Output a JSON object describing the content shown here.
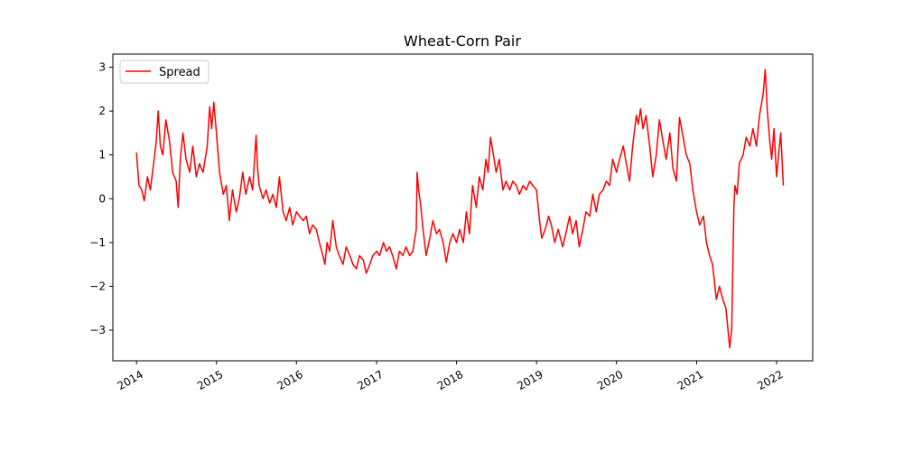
{
  "chart_data": {
    "type": "line",
    "title": "Wheat-Corn Pair",
    "xlabel": "",
    "ylabel": "",
    "x_type": "date",
    "xlim": [
      "2013-09-15",
      "2022-06-15"
    ],
    "ylim": [
      -3.7,
      3.3
    ],
    "x_ticks": [
      {
        "date": "2014-01-01",
        "label": "2014"
      },
      {
        "date": "2015-01-01",
        "label": "2015"
      },
      {
        "date": "2016-01-01",
        "label": "2016"
      },
      {
        "date": "2017-01-01",
        "label": "2017"
      },
      {
        "date": "2018-01-01",
        "label": "2018"
      },
      {
        "date": "2019-01-01",
        "label": "2019"
      },
      {
        "date": "2020-01-01",
        "label": "2020"
      },
      {
        "date": "2021-01-01",
        "label": "2021"
      },
      {
        "date": "2022-01-01",
        "label": "2022"
      }
    ],
    "y_ticks": [
      {
        "value": 3,
        "label": "3"
      },
      {
        "value": 2,
        "label": "2"
      },
      {
        "value": 1,
        "label": "1"
      },
      {
        "value": 0,
        "label": "0"
      },
      {
        "value": -1,
        "label": "−1"
      },
      {
        "value": -2,
        "label": "−2"
      },
      {
        "value": -3,
        "label": "−3"
      }
    ],
    "grid": false,
    "legend_position": "upper-left",
    "series": [
      {
        "name": "Spread",
        "color": "#ff0000",
        "points": [
          [
            "2014-01-01",
            1.05
          ],
          [
            "2014-01-12",
            0.3
          ],
          [
            "2014-01-25",
            0.2
          ],
          [
            "2014-02-05",
            -0.05
          ],
          [
            "2014-02-20",
            0.5
          ],
          [
            "2014-03-05",
            0.2
          ],
          [
            "2014-03-20",
            0.8
          ],
          [
            "2014-04-01",
            1.3
          ],
          [
            "2014-04-10",
            2.0
          ],
          [
            "2014-04-20",
            1.2
          ],
          [
            "2014-05-01",
            1.0
          ],
          [
            "2014-05-15",
            1.8
          ],
          [
            "2014-06-01",
            1.3
          ],
          [
            "2014-06-15",
            0.6
          ],
          [
            "2014-07-01",
            0.4
          ],
          [
            "2014-07-10",
            -0.2
          ],
          [
            "2014-07-20",
            0.9
          ],
          [
            "2014-08-01",
            1.5
          ],
          [
            "2014-08-15",
            0.9
          ],
          [
            "2014-09-01",
            0.6
          ],
          [
            "2014-09-15",
            1.2
          ],
          [
            "2014-10-01",
            0.5
          ],
          [
            "2014-10-15",
            0.8
          ],
          [
            "2014-11-01",
            0.6
          ],
          [
            "2014-11-20",
            1.2
          ],
          [
            "2014-12-01",
            2.1
          ],
          [
            "2014-12-10",
            1.6
          ],
          [
            "2014-12-20",
            2.2
          ],
          [
            "2015-01-01",
            1.5
          ],
          [
            "2015-01-15",
            0.6
          ],
          [
            "2015-02-01",
            0.1
          ],
          [
            "2015-02-15",
            0.3
          ],
          [
            "2015-03-01",
            -0.5
          ],
          [
            "2015-03-15",
            0.2
          ],
          [
            "2015-04-01",
            -0.3
          ],
          [
            "2015-04-15",
            0.0
          ],
          [
            "2015-05-01",
            0.6
          ],
          [
            "2015-05-15",
            0.1
          ],
          [
            "2015-06-01",
            0.5
          ],
          [
            "2015-06-15",
            0.2
          ],
          [
            "2015-07-01",
            1.45
          ],
          [
            "2015-07-08",
            0.7
          ],
          [
            "2015-07-15",
            0.3
          ],
          [
            "2015-08-01",
            0.0
          ],
          [
            "2015-08-15",
            0.2
          ],
          [
            "2015-09-01",
            -0.1
          ],
          [
            "2015-09-15",
            0.1
          ],
          [
            "2015-10-01",
            -0.2
          ],
          [
            "2015-10-15",
            0.5
          ],
          [
            "2015-11-01",
            -0.3
          ],
          [
            "2015-11-15",
            -0.5
          ],
          [
            "2015-12-01",
            -0.2
          ],
          [
            "2015-12-15",
            -0.6
          ],
          [
            "2016-01-01",
            -0.3
          ],
          [
            "2016-01-15",
            -0.4
          ],
          [
            "2016-02-01",
            -0.5
          ],
          [
            "2016-02-15",
            -0.4
          ],
          [
            "2016-03-01",
            -0.8
          ],
          [
            "2016-03-15",
            -0.6
          ],
          [
            "2016-04-01",
            -0.7
          ],
          [
            "2016-04-15",
            -1.0
          ],
          [
            "2016-05-01",
            -1.3
          ],
          [
            "2016-05-10",
            -1.5
          ],
          [
            "2016-05-20",
            -1.0
          ],
          [
            "2016-06-01",
            -1.2
          ],
          [
            "2016-06-15",
            -0.5
          ],
          [
            "2016-07-01",
            -1.1
          ],
          [
            "2016-07-15",
            -1.3
          ],
          [
            "2016-08-01",
            -1.5
          ],
          [
            "2016-08-15",
            -1.1
          ],
          [
            "2016-09-01",
            -1.3
          ],
          [
            "2016-09-15",
            -1.5
          ],
          [
            "2016-10-01",
            -1.6
          ],
          [
            "2016-10-15",
            -1.3
          ],
          [
            "2016-11-01",
            -1.4
          ],
          [
            "2016-11-15",
            -1.7
          ],
          [
            "2016-12-01",
            -1.5
          ],
          [
            "2016-12-15",
            -1.3
          ],
          [
            "2017-01-01",
            -1.2
          ],
          [
            "2017-01-15",
            -1.3
          ],
          [
            "2017-02-01",
            -1.0
          ],
          [
            "2017-02-15",
            -1.2
          ],
          [
            "2017-03-01",
            -1.1
          ],
          [
            "2017-03-15",
            -1.3
          ],
          [
            "2017-04-01",
            -1.6
          ],
          [
            "2017-04-15",
            -1.2
          ],
          [
            "2017-05-01",
            -1.3
          ],
          [
            "2017-05-15",
            -1.1
          ],
          [
            "2017-06-01",
            -1.3
          ],
          [
            "2017-06-15",
            -1.2
          ],
          [
            "2017-07-01",
            -0.7
          ],
          [
            "2017-07-05",
            0.6
          ],
          [
            "2017-07-12",
            0.2
          ],
          [
            "2017-07-20",
            -0.1
          ],
          [
            "2017-08-01",
            -0.7
          ],
          [
            "2017-08-15",
            -1.3
          ],
          [
            "2017-09-01",
            -0.9
          ],
          [
            "2017-09-15",
            -0.5
          ],
          [
            "2017-10-01",
            -0.8
          ],
          [
            "2017-10-15",
            -0.7
          ],
          [
            "2017-11-01",
            -1.0
          ],
          [
            "2017-11-15",
            -1.45
          ],
          [
            "2017-12-01",
            -1.0
          ],
          [
            "2017-12-15",
            -0.8
          ],
          [
            "2018-01-01",
            -1.0
          ],
          [
            "2018-01-15",
            -0.7
          ],
          [
            "2018-02-01",
            -1.0
          ],
          [
            "2018-02-15",
            -0.3
          ],
          [
            "2018-03-01",
            -0.8
          ],
          [
            "2018-03-15",
            0.3
          ],
          [
            "2018-04-01",
            -0.2
          ],
          [
            "2018-04-15",
            0.5
          ],
          [
            "2018-05-01",
            0.2
          ],
          [
            "2018-05-15",
            0.9
          ],
          [
            "2018-05-25",
            0.6
          ],
          [
            "2018-06-05",
            1.4
          ],
          [
            "2018-06-15",
            1.1
          ],
          [
            "2018-07-01",
            0.6
          ],
          [
            "2018-07-15",
            0.9
          ],
          [
            "2018-08-01",
            0.2
          ],
          [
            "2018-08-15",
            0.4
          ],
          [
            "2018-09-01",
            0.2
          ],
          [
            "2018-09-15",
            0.4
          ],
          [
            "2018-10-01",
            0.3
          ],
          [
            "2018-10-15",
            0.1
          ],
          [
            "2018-11-01",
            0.3
          ],
          [
            "2018-11-15",
            0.2
          ],
          [
            "2018-12-01",
            0.4
          ],
          [
            "2018-12-15",
            0.3
          ],
          [
            "2019-01-01",
            0.2
          ],
          [
            "2019-01-15",
            -0.5
          ],
          [
            "2019-01-25",
            -0.9
          ],
          [
            "2019-02-10",
            -0.7
          ],
          [
            "2019-02-25",
            -0.4
          ],
          [
            "2019-03-10",
            -0.6
          ],
          [
            "2019-03-25",
            -1.0
          ],
          [
            "2019-04-10",
            -0.7
          ],
          [
            "2019-05-01",
            -1.1
          ],
          [
            "2019-05-15",
            -0.8
          ],
          [
            "2019-06-01",
            -0.4
          ],
          [
            "2019-06-15",
            -0.8
          ],
          [
            "2019-07-01",
            -0.5
          ],
          [
            "2019-07-15",
            -1.1
          ],
          [
            "2019-08-01",
            -0.7
          ],
          [
            "2019-08-15",
            -0.3
          ],
          [
            "2019-09-01",
            -0.4
          ],
          [
            "2019-09-15",
            0.1
          ],
          [
            "2019-10-01",
            -0.3
          ],
          [
            "2019-10-15",
            0.1
          ],
          [
            "2019-11-01",
            0.2
          ],
          [
            "2019-11-15",
            0.4
          ],
          [
            "2019-12-01",
            0.3
          ],
          [
            "2019-12-15",
            0.9
          ],
          [
            "2020-01-01",
            0.6
          ],
          [
            "2020-01-15",
            0.9
          ],
          [
            "2020-02-01",
            1.2
          ],
          [
            "2020-02-15",
            0.8
          ],
          [
            "2020-03-01",
            0.4
          ],
          [
            "2020-03-15",
            1.2
          ],
          [
            "2020-04-01",
            1.9
          ],
          [
            "2020-04-10",
            1.7
          ],
          [
            "2020-04-20",
            2.05
          ],
          [
            "2020-05-01",
            1.6
          ],
          [
            "2020-05-15",
            1.9
          ],
          [
            "2020-06-01",
            1.2
          ],
          [
            "2020-06-15",
            0.5
          ],
          [
            "2020-07-01",
            1.0
          ],
          [
            "2020-07-15",
            1.8
          ],
          [
            "2020-08-01",
            1.3
          ],
          [
            "2020-08-15",
            0.9
          ],
          [
            "2020-09-01",
            1.5
          ],
          [
            "2020-09-15",
            0.7
          ],
          [
            "2020-10-01",
            0.4
          ],
          [
            "2020-10-15",
            1.85
          ],
          [
            "2020-11-01",
            1.4
          ],
          [
            "2020-11-15",
            1.0
          ],
          [
            "2020-12-01",
            0.8
          ],
          [
            "2020-12-15",
            0.2
          ],
          [
            "2021-01-01",
            -0.3
          ],
          [
            "2021-01-15",
            -0.6
          ],
          [
            "2021-02-01",
            -0.4
          ],
          [
            "2021-02-15",
            -1.0
          ],
          [
            "2021-03-01",
            -1.3
          ],
          [
            "2021-03-15",
            -1.5
          ],
          [
            "2021-04-01",
            -2.3
          ],
          [
            "2021-04-15",
            -2.0
          ],
          [
            "2021-05-01",
            -2.3
          ],
          [
            "2021-05-15",
            -2.5
          ],
          [
            "2021-06-01",
            -3.4
          ],
          [
            "2021-06-10",
            -3.0
          ],
          [
            "2021-06-20",
            -0.2
          ],
          [
            "2021-06-25",
            0.3
          ],
          [
            "2021-07-05",
            0.1
          ],
          [
            "2021-07-15",
            0.8
          ],
          [
            "2021-08-01",
            1.0
          ],
          [
            "2021-08-15",
            1.4
          ],
          [
            "2021-09-01",
            1.2
          ],
          [
            "2021-09-15",
            1.6
          ],
          [
            "2021-10-01",
            1.2
          ],
          [
            "2021-10-15",
            1.9
          ],
          [
            "2021-11-01",
            2.4
          ],
          [
            "2021-11-10",
            2.95
          ],
          [
            "2021-11-20",
            2.0
          ],
          [
            "2021-12-01",
            1.3
          ],
          [
            "2021-12-10",
            0.9
          ],
          [
            "2021-12-20",
            1.6
          ],
          [
            "2022-01-01",
            0.5
          ],
          [
            "2022-01-10",
            1.0
          ],
          [
            "2022-01-20",
            1.5
          ],
          [
            "2022-02-01",
            0.3
          ]
        ]
      }
    ]
  }
}
